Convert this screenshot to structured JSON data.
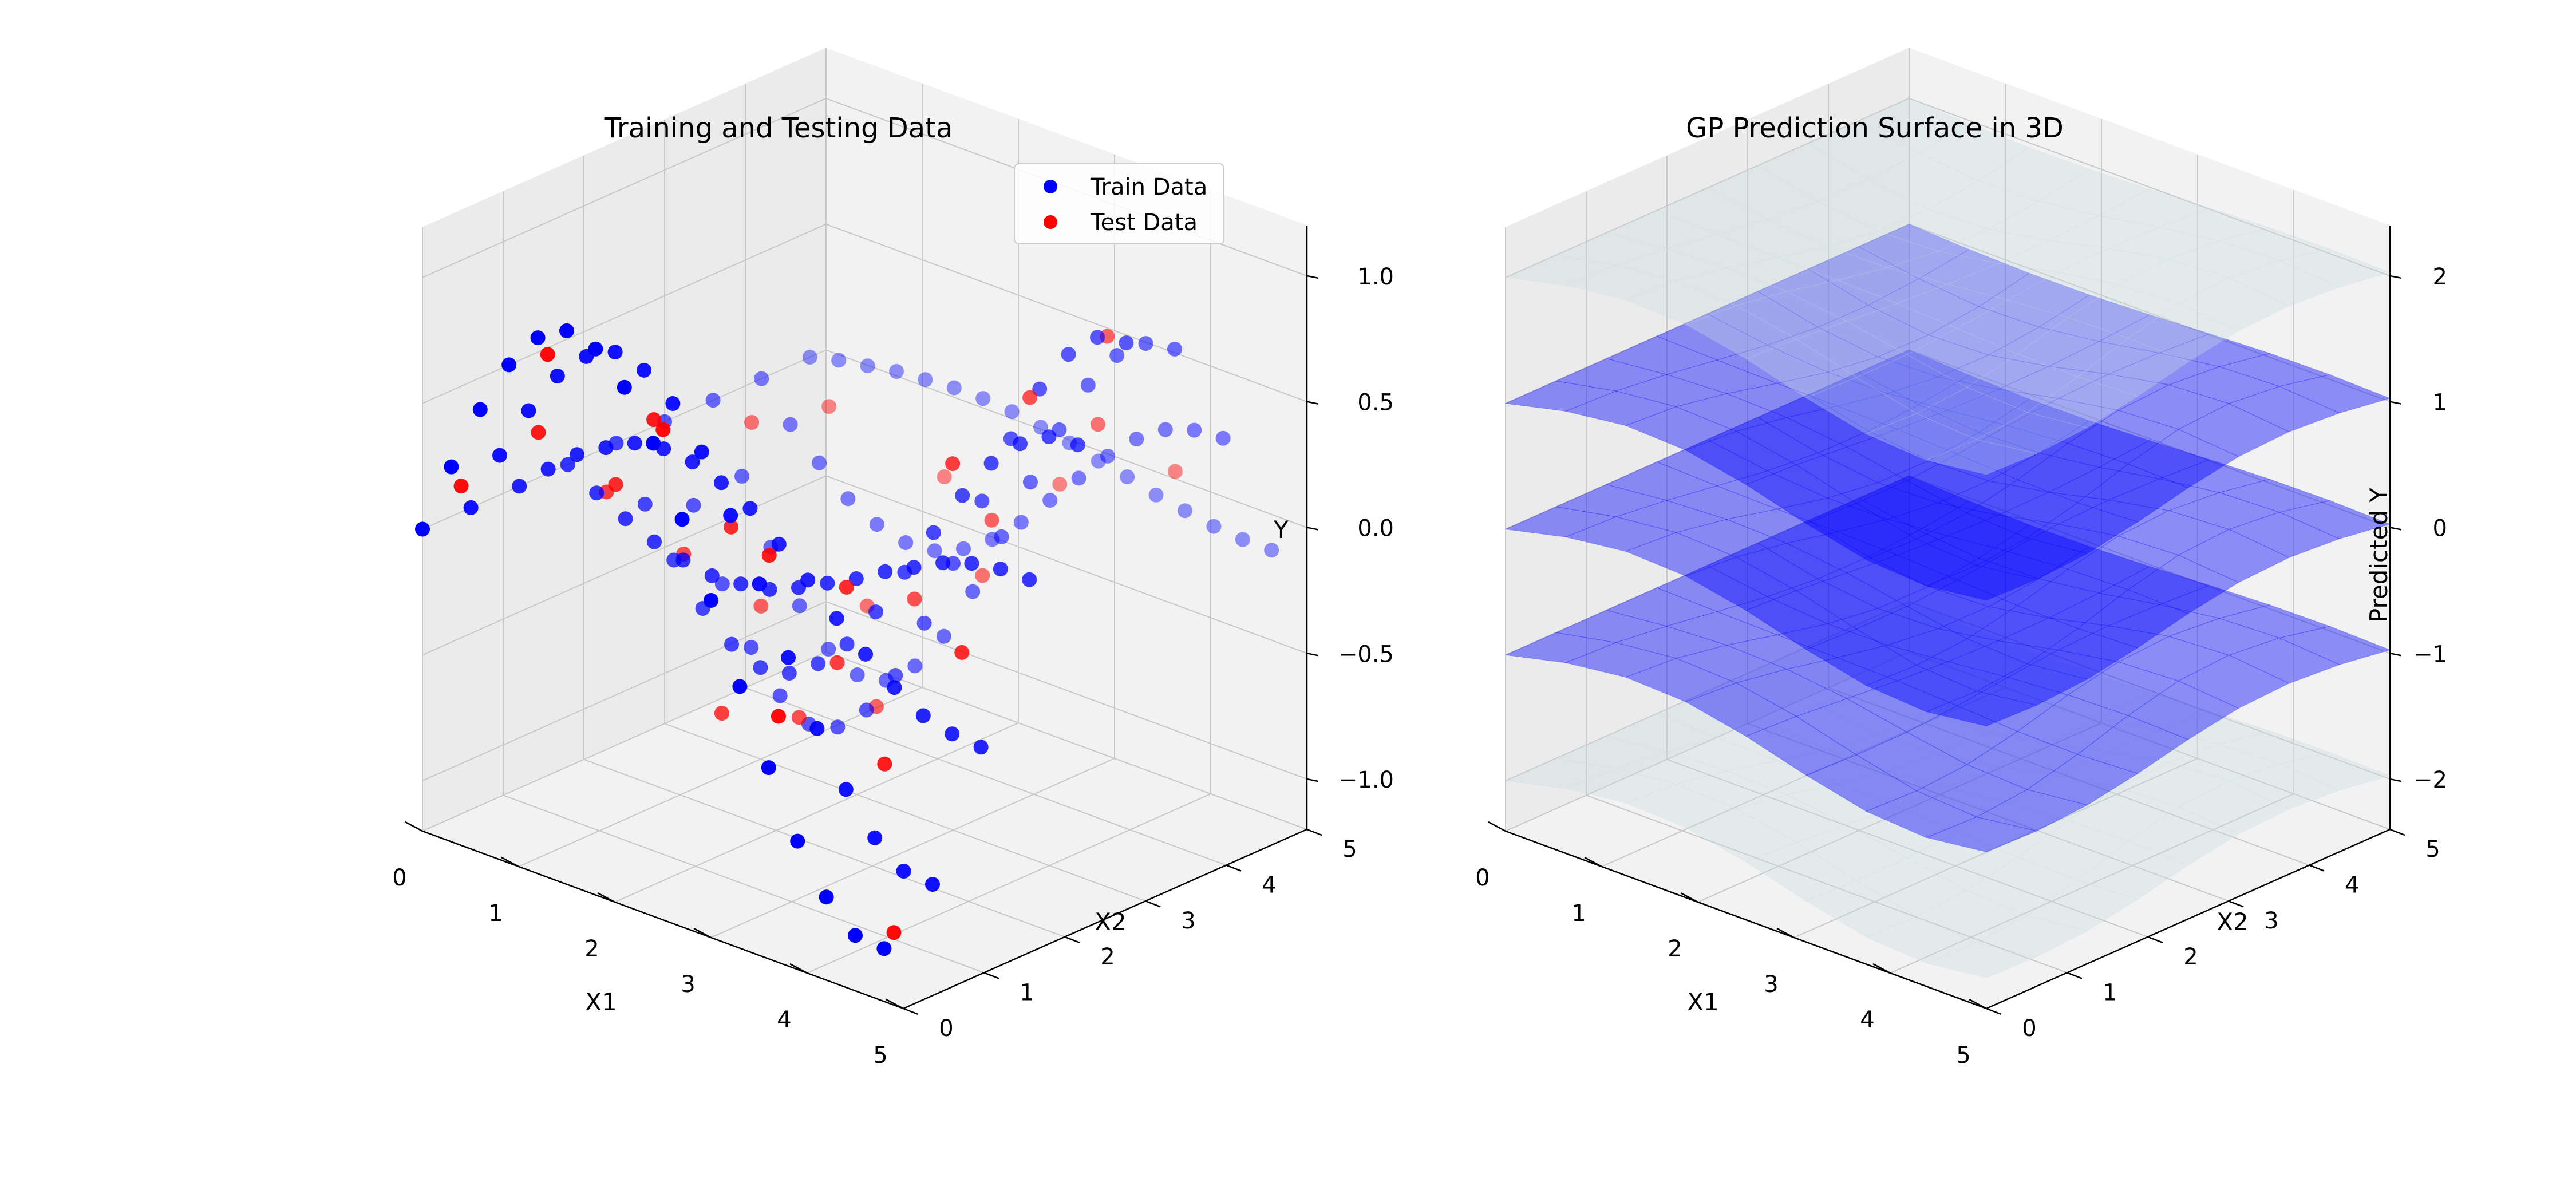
{
  "chart_data": [
    {
      "type": "scatter",
      "projection": "3d",
      "title": "Training and Testing Data",
      "xlabel": "X1",
      "ylabel": "X2",
      "zlabel": "Y",
      "xlim": [
        0,
        5
      ],
      "ylim": [
        0,
        5
      ],
      "zlim": [
        -1.2,
        1.2
      ],
      "xticks": [
        "0",
        "1",
        "2",
        "3",
        "4",
        "5"
      ],
      "yticks": [
        "0",
        "1",
        "2",
        "3",
        "4",
        "5"
      ],
      "zticks": [
        "−1.0",
        "−0.5",
        "0.0",
        "0.5",
        "1.0"
      ],
      "zticks_values": [
        -1.0,
        -0.5,
        0.0,
        0.5,
        1.0
      ],
      "grid": true,
      "legend": {
        "position": "top-right",
        "entries": [
          {
            "label": "Train Data",
            "color": "#0000ff"
          },
          {
            "label": "Test Data",
            "color": "#ff0000"
          }
        ]
      },
      "series": [
        {
          "name": "Train Data",
          "color": "#0000ff",
          "points": [
            [
              0.0,
              0.0,
              0.0
            ],
            [
              0.3,
              0.0,
              0.29
            ],
            [
              0.6,
              0.0,
              0.56
            ],
            [
              0.9,
              0.0,
              0.78
            ],
            [
              1.2,
              0.0,
              0.93
            ],
            [
              1.5,
              0.0,
              1.0
            ],
            [
              1.8,
              0.0,
              0.97
            ],
            [
              2.1,
              0.0,
              0.86
            ],
            [
              2.4,
              0.0,
              0.68
            ],
            [
              2.7,
              0.0,
              0.42
            ],
            [
              3.0,
              0.0,
              0.14
            ],
            [
              3.3,
              0.0,
              -0.16
            ],
            [
              3.6,
              0.0,
              -0.44
            ],
            [
              3.9,
              0.0,
              -0.69
            ],
            [
              4.2,
              0.0,
              -0.87
            ],
            [
              4.5,
              0.0,
              -0.98
            ],
            [
              4.8,
              0.0,
              -0.99
            ],
            [
              0.0,
              0.6,
              0.0
            ],
            [
              0.3,
              0.6,
              0.25
            ],
            [
              0.6,
              0.6,
              0.47
            ],
            [
              0.9,
              0.6,
              0.65
            ],
            [
              1.2,
              0.6,
              0.77
            ],
            [
              1.5,
              0.6,
              0.83
            ],
            [
              1.8,
              0.6,
              0.8
            ],
            [
              2.1,
              0.6,
              0.71
            ],
            [
              2.4,
              0.6,
              0.56
            ],
            [
              2.7,
              0.6,
              0.35
            ],
            [
              3.0,
              0.6,
              0.12
            ],
            [
              3.3,
              0.6,
              -0.13
            ],
            [
              3.6,
              0.6,
              -0.37
            ],
            [
              3.9,
              0.6,
              -0.57
            ],
            [
              4.2,
              0.6,
              -0.72
            ],
            [
              4.5,
              0.6,
              -0.81
            ],
            [
              4.8,
              0.6,
              -0.82
            ],
            [
              0.0,
              1.2,
              0.0
            ],
            [
              0.3,
              1.2,
              0.11
            ],
            [
              0.6,
              1.2,
              0.21
            ],
            [
              0.9,
              1.2,
              0.28
            ],
            [
              1.2,
              1.2,
              0.34
            ],
            [
              1.5,
              1.2,
              0.36
            ],
            [
              1.8,
              1.2,
              0.35
            ],
            [
              2.1,
              1.2,
              0.31
            ],
            [
              2.4,
              1.2,
              0.25
            ],
            [
              2.7,
              1.2,
              0.15
            ],
            [
              3.0,
              1.2,
              0.05
            ],
            [
              3.3,
              1.2,
              -0.06
            ],
            [
              3.6,
              1.2,
              -0.16
            ],
            [
              3.9,
              1.2,
              -0.25
            ],
            [
              4.2,
              1.2,
              -0.32
            ],
            [
              4.5,
              1.2,
              -0.35
            ],
            [
              4.8,
              1.2,
              -0.36
            ],
            [
              0.0,
              1.8,
              0.0
            ],
            [
              0.3,
              1.8,
              -0.07
            ],
            [
              0.6,
              1.8,
              -0.13
            ],
            [
              0.9,
              1.8,
              -0.18
            ],
            [
              1.2,
              1.8,
              -0.21
            ],
            [
              1.5,
              1.8,
              -0.23
            ],
            [
              1.8,
              1.8,
              -0.22
            ],
            [
              2.1,
              1.8,
              -0.2
            ],
            [
              2.4,
              1.8,
              -0.15
            ],
            [
              2.7,
              1.8,
              -0.09
            ],
            [
              3.0,
              1.8,
              -0.03
            ],
            [
              3.3,
              1.8,
              0.04
            ],
            [
              3.6,
              1.8,
              0.1
            ],
            [
              3.9,
              1.8,
              0.16
            ],
            [
              4.2,
              1.8,
              0.2
            ],
            [
              4.5,
              1.8,
              0.22
            ],
            [
              4.8,
              1.8,
              0.22
            ],
            [
              0.0,
              2.4,
              0.0
            ],
            [
              0.3,
              2.4,
              -0.2
            ],
            [
              0.6,
              2.4,
              -0.38
            ],
            [
              0.9,
              2.4,
              -0.53
            ],
            [
              1.2,
              2.4,
              -0.63
            ],
            [
              1.5,
              2.4,
              -0.68
            ],
            [
              1.8,
              2.4,
              -0.66
            ],
            [
              2.1,
              2.4,
              -0.58
            ],
            [
              2.4,
              2.4,
              -0.46
            ],
            [
              2.7,
              2.4,
              -0.29
            ],
            [
              3.0,
              2.4,
              -0.09
            ],
            [
              3.3,
              2.4,
              0.11
            ],
            [
              3.6,
              2.4,
              0.3
            ],
            [
              3.9,
              2.4,
              0.47
            ],
            [
              4.2,
              2.4,
              0.59
            ],
            [
              4.5,
              2.4,
              0.66
            ],
            [
              4.8,
              2.4,
              0.67
            ],
            [
              0.0,
              3.0,
              0.0
            ],
            [
              0.3,
              3.0,
              -0.29
            ],
            [
              0.6,
              3.0,
              -0.56
            ],
            [
              0.9,
              3.0,
              -0.77
            ],
            [
              1.2,
              3.0,
              -0.92
            ],
            [
              1.5,
              3.0,
              -0.99
            ],
            [
              1.8,
              3.0,
              -0.96
            ],
            [
              2.1,
              3.0,
              -0.85
            ],
            [
              2.4,
              3.0,
              -0.67
            ],
            [
              2.7,
              3.0,
              -0.42
            ],
            [
              3.0,
              3.0,
              -0.14
            ],
            [
              3.3,
              3.0,
              0.15
            ],
            [
              3.6,
              3.0,
              0.44
            ],
            [
              3.9,
              3.0,
              0.68
            ],
            [
              4.2,
              3.0,
              0.86
            ],
            [
              4.5,
              3.0,
              0.97
            ],
            [
              4.8,
              3.0,
              0.99
            ],
            [
              0.0,
              3.6,
              0.0
            ],
            [
              0.3,
              3.6,
              -0.26
            ],
            [
              0.6,
              3.6,
              -0.5
            ],
            [
              0.9,
              3.6,
              -0.69
            ],
            [
              1.2,
              3.6,
              -0.82
            ],
            [
              1.5,
              3.6,
              -0.88
            ],
            [
              1.8,
              3.6,
              -0.86
            ],
            [
              2.1,
              3.6,
              -0.76
            ],
            [
              2.4,
              3.6,
              -0.6
            ],
            [
              2.7,
              3.6,
              -0.38
            ],
            [
              3.0,
              3.6,
              -0.12
            ],
            [
              3.3,
              3.6,
              0.14
            ],
            [
              3.6,
              3.6,
              0.39
            ],
            [
              3.9,
              3.6,
              0.61
            ],
            [
              4.2,
              3.6,
              0.77
            ],
            [
              4.5,
              3.6,
              0.86
            ],
            [
              4.8,
              3.6,
              0.88
            ],
            [
              0.0,
              4.2,
              0.0
            ],
            [
              0.3,
              4.2,
              -0.14
            ],
            [
              0.6,
              4.2,
              -0.25
            ],
            [
              0.9,
              4.2,
              -0.35
            ],
            [
              1.2,
              4.2,
              -0.41
            ],
            [
              1.5,
              4.2,
              -0.44
            ],
            [
              1.8,
              4.2,
              -0.43
            ],
            [
              2.1,
              4.2,
              -0.38
            ],
            [
              2.4,
              4.2,
              -0.3
            ],
            [
              2.7,
              4.2,
              -0.19
            ],
            [
              3.0,
              4.2,
              -0.06
            ],
            [
              3.3,
              4.2,
              0.07
            ],
            [
              3.6,
              4.2,
              0.2
            ],
            [
              3.9,
              4.2,
              0.31
            ],
            [
              4.2,
              4.2,
              0.39
            ],
            [
              4.5,
              4.2,
              0.43
            ],
            [
              4.8,
              4.2,
              0.44
            ],
            [
              0.0,
              4.8,
              0.0
            ],
            [
              0.3,
              4.8,
              0.03
            ],
            [
              0.6,
              4.8,
              0.05
            ],
            [
              0.9,
              4.8,
              0.07
            ],
            [
              1.2,
              4.8,
              0.08
            ],
            [
              1.5,
              4.8,
              0.09
            ],
            [
              1.8,
              4.8,
              0.09
            ],
            [
              2.1,
              4.8,
              0.08
            ],
            [
              2.4,
              4.8,
              0.06
            ],
            [
              2.7,
              4.8,
              0.04
            ],
            [
              3.0,
              4.8,
              0.01
            ],
            [
              3.3,
              4.8,
              -0.01
            ],
            [
              3.6,
              4.8,
              -0.04
            ],
            [
              3.9,
              4.8,
              -0.06
            ],
            [
              4.2,
              4.8,
              -0.08
            ],
            [
              4.5,
              4.8,
              -0.09
            ],
            [
              4.8,
              4.8,
              -0.09
            ]
          ]
        },
        {
          "name": "Test Data",
          "color": "#ff0000",
          "points": [
            [
              0.15,
              0.3,
              0.15
            ],
            [
              1.05,
              0.3,
              0.8
            ],
            [
              2.25,
              0.3,
              0.67
            ],
            [
              3.45,
              0.3,
              -0.3
            ],
            [
              4.65,
              0.3,
              -0.99
            ],
            [
              0.45,
              0.9,
              0.32
            ],
            [
              1.65,
              0.9,
              0.54
            ],
            [
              2.85,
              0.9,
              0.17
            ],
            [
              4.05,
              0.9,
              -0.49
            ],
            [
              0.75,
              1.5,
              0.07
            ],
            [
              1.95,
              1.5,
              0.07
            ],
            [
              3.15,
              1.5,
              0.0
            ],
            [
              4.35,
              1.5,
              -0.09
            ],
            [
              0.15,
              2.1,
              -0.13
            ],
            [
              1.35,
              2.1,
              -0.84
            ],
            [
              2.55,
              2.1,
              -0.47
            ],
            [
              3.75,
              2.1,
              0.49
            ],
            [
              0.45,
              2.7,
              -0.42
            ],
            [
              1.65,
              2.7,
              -0.9
            ],
            [
              2.85,
              2.7,
              -0.26
            ],
            [
              4.05,
              2.7,
              0.71
            ],
            [
              0.75,
              3.3,
              -0.67
            ],
            [
              1.95,
              3.3,
              -0.9
            ],
            [
              3.15,
              3.3,
              0.01
            ],
            [
              4.35,
              3.3,
              0.91
            ],
            [
              0.15,
              3.9,
              -0.11
            ],
            [
              1.35,
              3.9,
              -0.67
            ],
            [
              2.55,
              3.9,
              -0.38
            ],
            [
              3.75,
              3.9,
              0.39
            ],
            [
              0.45,
              4.5,
              -0.09
            ],
            [
              1.65,
              4.5,
              -0.2
            ],
            [
              2.85,
              4.5,
              -0.06
            ],
            [
              4.05,
              4.5,
              0.16
            ]
          ]
        }
      ]
    },
    {
      "type": "surface",
      "projection": "3d",
      "title": "GP Prediction Surface in 3D",
      "xlabel": "X1",
      "ylabel": "X2",
      "zlabel": "Predicted Y",
      "xlim": [
        0,
        5
      ],
      "ylim": [
        0,
        5
      ],
      "zlim": [
        -2.4,
        2.4
      ],
      "xticks": [
        "0",
        "1",
        "2",
        "3",
        "4",
        "5"
      ],
      "yticks": [
        "0",
        "1",
        "2",
        "3",
        "4",
        "5"
      ],
      "zticks": [
        "−2",
        "−1",
        "0",
        "1",
        "2"
      ],
      "zticks_values": [
        -2,
        -1,
        0,
        1,
        2
      ],
      "grid": true,
      "series": [
        {
          "name": "",
          "offset": 2.0,
          "color": "#c8dcdf"
        },
        {
          "name": "",
          "offset": 1.0,
          "color": "#0000ff"
        },
        {
          "name": "",
          "offset": 0.0,
          "color": "#0000ff"
        },
        {
          "name": "",
          "offset": -1.0,
          "color": "#0000ff"
        },
        {
          "name": "",
          "offset": -2.0,
          "color": "#c8dcdf"
        }
      ]
    }
  ]
}
